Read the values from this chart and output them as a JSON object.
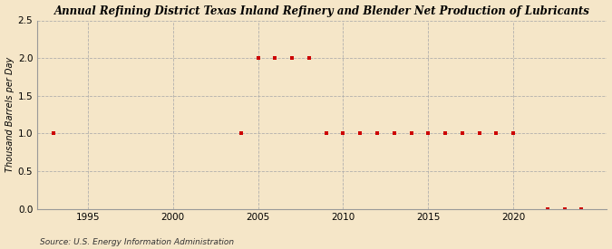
{
  "title": "Annual Refining District Texas Inland Refinery and Blender Net Production of Lubricants",
  "ylabel": "Thousand Barrels per Day",
  "source": "Source: U.S. Energy Information Administration",
  "background_color": "#f5e6c8",
  "plot_bg_color": "#f5e6c8",
  "data_color": "#cc0000",
  "grid_color": "#aaaaaa",
  "xlim": [
    1992.0,
    2025.5
  ],
  "ylim": [
    0.0,
    2.5
  ],
  "yticks": [
    0.0,
    0.5,
    1.0,
    1.5,
    2.0,
    2.5
  ],
  "xticks": [
    1995,
    2000,
    2005,
    2010,
    2015,
    2020
  ],
  "years": [
    1993,
    2004,
    2005,
    2006,
    2007,
    2008,
    2009,
    2010,
    2011,
    2012,
    2013,
    2014,
    2015,
    2016,
    2017,
    2018,
    2019,
    2020,
    2022,
    2023,
    2024
  ],
  "values": [
    1.0,
    1.0,
    2.0,
    2.0,
    2.0,
    2.0,
    1.0,
    1.0,
    1.0,
    1.0,
    1.0,
    1.0,
    1.0,
    1.0,
    1.0,
    1.0,
    1.0,
    1.0,
    0.0,
    0.0,
    0.0
  ]
}
